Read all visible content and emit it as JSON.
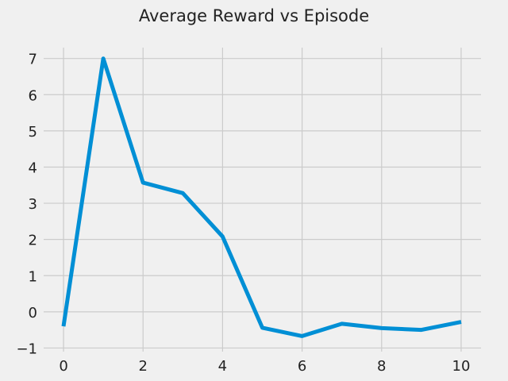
{
  "chart_data": {
    "type": "line",
    "title": "Average Reward vs Episode",
    "xlabel": "",
    "ylabel": "",
    "xlim": [
      -0.5,
      10.5
    ],
    "ylim": [
      -1.1,
      7.3
    ],
    "x_ticks": [
      0,
      2,
      4,
      6,
      8,
      10
    ],
    "y_ticks": [
      -1,
      0,
      1,
      2,
      3,
      4,
      5,
      6,
      7
    ],
    "x_tick_labels": [
      "0",
      "2",
      "4",
      "6",
      "8",
      "10"
    ],
    "y_tick_labels": [
      "−1",
      "0",
      "1",
      "2",
      "3",
      "4",
      "5",
      "6",
      "7"
    ],
    "grid": true,
    "legend": "none",
    "series": [
      {
        "color": "#008fd5",
        "x": [
          0,
          1,
          2,
          3,
          4,
          5,
          6,
          7,
          8,
          9,
          10
        ],
        "y": [
          -0.4,
          7.0,
          3.57,
          3.28,
          2.08,
          -0.44,
          -0.67,
          -0.33,
          -0.45,
          -0.5,
          -0.28
        ]
      }
    ]
  }
}
